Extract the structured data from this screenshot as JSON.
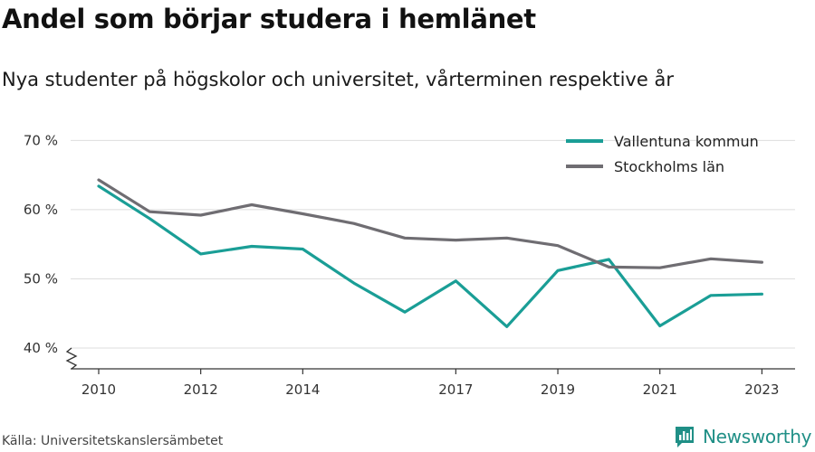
{
  "title": "Andel som börjar studera i hemlänet",
  "subtitle": "Nya studenter på högskolor och universitet, vårterminen respektive år",
  "source": "Källa: Universitetskanslersämbetet",
  "brand": "Newsworthy",
  "chart_data": {
    "type": "line",
    "x": [
      2010,
      2011,
      2012,
      2013,
      2014,
      2015,
      2016,
      2017,
      2018,
      2019,
      2020,
      2021,
      2022,
      2023
    ],
    "x_tick_labels": [
      "2010",
      "2012",
      "2014",
      "2017",
      "2019",
      "2021",
      "2023"
    ],
    "y_tick_labels": [
      "70 %",
      "60 %",
      "50 %",
      "40 %"
    ],
    "y_ticks": [
      70,
      60,
      50,
      40
    ],
    "ylim": [
      37,
      72
    ],
    "xlim": [
      2009.45,
      2023.65
    ],
    "y_axis_break": true,
    "grid": true,
    "legend_position": "top-right",
    "series": [
      {
        "name": "Vallentuna kommun",
        "color": "#1a9e96",
        "values": [
          63.4,
          58.7,
          53.6,
          54.7,
          54.3,
          49.4,
          45.2,
          49.7,
          43.1,
          51.2,
          52.8,
          43.2,
          47.6,
          47.8
        ]
      },
      {
        "name": "Stockholms län",
        "color": "#6f6d72",
        "values": [
          64.3,
          59.7,
          59.2,
          60.7,
          59.4,
          58.0,
          55.9,
          55.6,
          55.9,
          54.8,
          51.7,
          51.6,
          52.9,
          52.4
        ]
      }
    ]
  }
}
